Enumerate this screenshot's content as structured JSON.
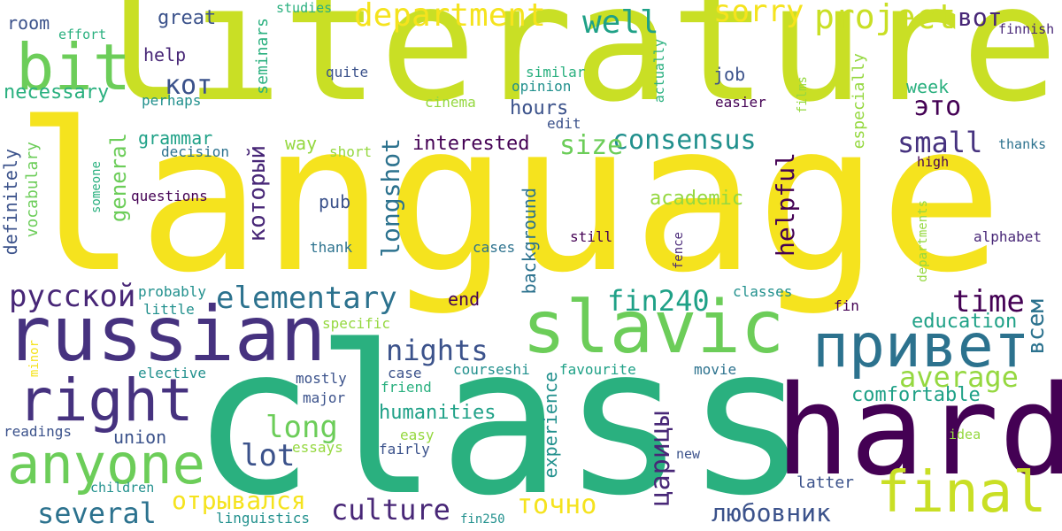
{
  "background": "#ffffff",
  "palette": {
    "yellow": "#f5e31e",
    "lime": "#c9df25",
    "green": "#6ccd59",
    "lightgreen": "#95d840",
    "teal": "#1fa187",
    "mint": "#2ab07f",
    "cyan": "#21908d",
    "steel": "#2c728e",
    "blue": "#3b528b",
    "indigo": "#46327f",
    "purple": "#482777",
    "dark": "#440154"
  },
  "words": [
    {
      "text": "literature",
      "weight": 100,
      "orientation": "horizontal",
      "color": "#c9df25"
    },
    {
      "text": "language",
      "weight": 98,
      "orientation": "horizontal",
      "color": "#f5e31e"
    },
    {
      "text": "class",
      "weight": 95,
      "orientation": "horizontal",
      "color": "#2ab07f"
    },
    {
      "text": "hard",
      "weight": 60,
      "orientation": "horizontal",
      "color": "#440154"
    },
    {
      "text": "russian",
      "weight": 50,
      "orientation": "horizontal",
      "color": "#46327f"
    },
    {
      "text": "slavic",
      "weight": 48,
      "orientation": "horizontal",
      "color": "#6ccd59"
    },
    {
      "text": "привет",
      "weight": 46,
      "orientation": "horizontal",
      "color": "#2c728e"
    },
    {
      "text": "bit",
      "weight": 45,
      "orientation": "horizontal",
      "color": "#6ccd59"
    },
    {
      "text": "right",
      "weight": 42,
      "orientation": "horizontal",
      "color": "#46327f"
    },
    {
      "text": "anyone",
      "weight": 40,
      "orientation": "horizontal",
      "color": "#6ccd59"
    },
    {
      "text": "final",
      "weight": 38,
      "orientation": "horizontal",
      "color": "#c9df25"
    },
    {
      "text": "project",
      "weight": 28,
      "orientation": "horizontal",
      "color": "#c9df25"
    },
    {
      "text": "department",
      "weight": 27,
      "orientation": "horizontal",
      "color": "#f5e31e"
    },
    {
      "text": "well",
      "weight": 26,
      "orientation": "horizontal",
      "color": "#1fa187"
    },
    {
      "text": "sorry",
      "weight": 25,
      "orientation": "horizontal",
      "color": "#f5e31e"
    },
    {
      "text": "вот",
      "weight": 20,
      "orientation": "horizontal",
      "color": "#482777"
    },
    {
      "text": "кот",
      "weight": 22,
      "orientation": "horizontal",
      "color": "#3b528b"
    },
    {
      "text": "это",
      "weight": 22,
      "orientation": "horizontal",
      "color": "#440154"
    },
    {
      "text": "consensus",
      "weight": 24,
      "orientation": "horizontal",
      "color": "#21908d"
    },
    {
      "text": "size",
      "weight": 24,
      "orientation": "horizontal",
      "color": "#6ccd59"
    },
    {
      "text": "small",
      "weight": 24,
      "orientation": "horizontal",
      "color": "#46327f"
    },
    {
      "text": "elementary",
      "weight": 28,
      "orientation": "horizontal",
      "color": "#2c728e"
    },
    {
      "text": "русской",
      "weight": 27,
      "orientation": "horizontal",
      "color": "#482777"
    },
    {
      "text": "fin240",
      "weight": 26,
      "orientation": "horizontal",
      "color": "#1fa187"
    },
    {
      "text": "time",
      "weight": 26,
      "orientation": "horizontal",
      "color": "#440154"
    },
    {
      "text": "nights",
      "weight": 26,
      "orientation": "horizontal",
      "color": "#3b528b"
    },
    {
      "text": "average",
      "weight": 26,
      "orientation": "horizontal",
      "color": "#95d840"
    },
    {
      "text": "long",
      "weight": 26,
      "orientation": "horizontal",
      "color": "#6ccd59"
    },
    {
      "text": "lot",
      "weight": 26,
      "orientation": "horizontal",
      "color": "#3b528b"
    },
    {
      "text": "several",
      "weight": 26,
      "orientation": "horizontal",
      "color": "#2c728e"
    },
    {
      "text": "culture",
      "weight": 26,
      "orientation": "horizontal",
      "color": "#482777"
    },
    {
      "text": "точно",
      "weight": 24,
      "orientation": "horizontal",
      "color": "#f5e31e"
    },
    {
      "text": "любовник",
      "weight": 24,
      "orientation": "horizontal",
      "color": "#3b528b"
    },
    {
      "text": "отрывался",
      "weight": 24,
      "orientation": "horizontal",
      "color": "#f5e31e"
    },
    {
      "text": "comfortable",
      "weight": 18,
      "orientation": "horizontal",
      "color": "#1fa187"
    },
    {
      "text": "education",
      "weight": 18,
      "orientation": "horizontal",
      "color": "#1fa187"
    },
    {
      "text": "humanities",
      "weight": 18,
      "orientation": "horizontal",
      "color": "#1fa187"
    },
    {
      "text": "interested",
      "weight": 18,
      "orientation": "horizontal",
      "color": "#440154"
    },
    {
      "text": "hours",
      "weight": 18,
      "orientation": "horizontal",
      "color": "#3b528b"
    },
    {
      "text": "academic",
      "weight": 18,
      "orientation": "horizontal",
      "color": "#95d840"
    },
    {
      "text": "grammar",
      "weight": 16,
      "orientation": "horizontal",
      "color": "#1fa187"
    },
    {
      "text": "great",
      "weight": 16,
      "orientation": "horizontal",
      "color": "#3b528b"
    },
    {
      "text": "help",
      "weight": 16,
      "orientation": "horizontal",
      "color": "#482777"
    },
    {
      "text": "room",
      "weight": 16,
      "orientation": "horizontal",
      "color": "#3b528b"
    },
    {
      "text": "necessary",
      "weight": 16,
      "orientation": "horizontal",
      "color": "#2ab07f"
    },
    {
      "text": "job",
      "weight": 16,
      "orientation": "horizontal",
      "color": "#3b528b"
    },
    {
      "text": "week",
      "weight": 16,
      "orientation": "horizontal",
      "color": "#2ab07f"
    },
    {
      "text": "way",
      "weight": 16,
      "orientation": "horizontal",
      "color": "#95d840"
    },
    {
      "text": "pub",
      "weight": 16,
      "orientation": "horizontal",
      "color": "#3b528b"
    },
    {
      "text": "end",
      "weight": 16,
      "orientation": "horizontal",
      "color": "#440154"
    },
    {
      "text": "union",
      "weight": 16,
      "orientation": "horizontal",
      "color": "#3b528b"
    },
    {
      "text": "mostly",
      "weight": 14,
      "orientation": "horizontal",
      "color": "#3b528b"
    },
    {
      "text": "major",
      "weight": 14,
      "orientation": "horizontal",
      "color": "#3b528b"
    },
    {
      "text": "fairly",
      "weight": 14,
      "orientation": "horizontal",
      "color": "#3b528b"
    },
    {
      "text": "latter",
      "weight": 14,
      "orientation": "horizontal",
      "color": "#3b528b"
    },
    {
      "text": "elective",
      "weight": 14,
      "orientation": "horizontal",
      "color": "#21908d"
    },
    {
      "text": "little",
      "weight": 14,
      "orientation": "horizontal",
      "color": "#21908d"
    },
    {
      "text": "probably",
      "weight": 14,
      "orientation": "horizontal",
      "color": "#21908d"
    },
    {
      "text": "children",
      "weight": 14,
      "orientation": "horizontal",
      "color": "#21908d"
    },
    {
      "text": "readings",
      "weight": 14,
      "orientation": "horizontal",
      "color": "#3b528b"
    },
    {
      "text": "linguistics",
      "weight": 14,
      "orientation": "horizontal",
      "color": "#21908d"
    },
    {
      "text": "fin250",
      "weight": 14,
      "orientation": "horizontal",
      "color": "#21908d"
    },
    {
      "text": "alphabet",
      "weight": 14,
      "orientation": "horizontal",
      "color": "#482777"
    },
    {
      "text": "fin",
      "weight": 14,
      "orientation": "horizontal",
      "color": "#440154"
    },
    {
      "text": "classes",
      "weight": 14,
      "orientation": "horizontal",
      "color": "#21908d"
    },
    {
      "text": "movie",
      "weight": 14,
      "orientation": "horizontal",
      "color": "#2c728e"
    },
    {
      "text": "favourite",
      "weight": 14,
      "orientation": "horizontal",
      "color": "#1fa187"
    },
    {
      "text": "courseshi",
      "weight": 14,
      "orientation": "horizontal",
      "color": "#21908d"
    },
    {
      "text": "case",
      "weight": 14,
      "orientation": "horizontal",
      "color": "#3b528b"
    },
    {
      "text": "friend",
      "weight": 14,
      "orientation": "horizontal",
      "color": "#2ab07f"
    },
    {
      "text": "easy",
      "weight": 14,
      "orientation": "horizontal",
      "color": "#95d840"
    },
    {
      "text": "essays",
      "weight": 14,
      "orientation": "horizontal",
      "color": "#95d840"
    },
    {
      "text": "new",
      "weight": 14,
      "orientation": "horizontal",
      "color": "#3b528b"
    },
    {
      "text": "idea",
      "weight": 14,
      "orientation": "horizontal",
      "color": "#95d840"
    },
    {
      "text": "specific",
      "weight": 14,
      "orientation": "horizontal",
      "color": "#95d840"
    },
    {
      "text": "still",
      "weight": 14,
      "orientation": "horizontal",
      "color": "#440154"
    },
    {
      "text": "cases",
      "weight": 14,
      "orientation": "horizontal",
      "color": "#2c728e"
    },
    {
      "text": "thank",
      "weight": 14,
      "orientation": "horizontal",
      "color": "#2c728e"
    },
    {
      "text": "questions",
      "weight": 14,
      "orientation": "horizontal",
      "color": "#440154"
    },
    {
      "text": "decision",
      "weight": 14,
      "orientation": "horizontal",
      "color": "#2c728e"
    },
    {
      "text": "short",
      "weight": 14,
      "orientation": "horizontal",
      "color": "#95d840"
    },
    {
      "text": "high",
      "weight": 14,
      "orientation": "horizontal",
      "color": "#440154"
    },
    {
      "text": "thanks",
      "weight": 14,
      "orientation": "horizontal",
      "color": "#2c728e"
    },
    {
      "text": "easier",
      "weight": 14,
      "orientation": "horizontal",
      "color": "#440154"
    },
    {
      "text": "cinema",
      "weight": 14,
      "orientation": "horizontal",
      "color": "#95d840"
    },
    {
      "text": "edit",
      "weight": 14,
      "orientation": "horizontal",
      "color": "#3b528b"
    },
    {
      "text": "opinion",
      "weight": 14,
      "orientation": "horizontal",
      "color": "#21908d"
    },
    {
      "text": "similar",
      "weight": 14,
      "orientation": "horizontal",
      "color": "#2ab07f"
    },
    {
      "text": "quite",
      "weight": 14,
      "orientation": "horizontal",
      "color": "#3b528b"
    },
    {
      "text": "perhaps",
      "weight": 14,
      "orientation": "horizontal",
      "color": "#21908d"
    },
    {
      "text": "effort",
      "weight": 14,
      "orientation": "horizontal",
      "color": "#2ab07f"
    },
    {
      "text": "studies",
      "weight": 14,
      "orientation": "horizontal",
      "color": "#2ab07f"
    },
    {
      "text": "finnish",
      "weight": 14,
      "orientation": "horizontal",
      "color": "#482777"
    },
    {
      "text": "longshot",
      "weight": 24,
      "orientation": "vertical",
      "color": "#2c728e"
    },
    {
      "text": "который",
      "weight": 22,
      "orientation": "vertical",
      "color": "#482777"
    },
    {
      "text": "general",
      "weight": 20,
      "orientation": "vertical",
      "color": "#6ccd59"
    },
    {
      "text": "helpful",
      "weight": 22,
      "orientation": "vertical",
      "color": "#440154"
    },
    {
      "text": "всем",
      "weight": 20,
      "orientation": "vertical",
      "color": "#2c728e"
    },
    {
      "text": "царицы",
      "weight": 24,
      "orientation": "vertical",
      "color": "#482777"
    },
    {
      "text": "definitely",
      "weight": 16,
      "orientation": "vertical",
      "color": "#3b528b"
    },
    {
      "text": "vocabulary",
      "weight": 16,
      "orientation": "vertical",
      "color": "#6ccd59"
    },
    {
      "text": "seminars",
      "weight": 16,
      "orientation": "vertical",
      "color": "#2ab07f"
    },
    {
      "text": "background",
      "weight": 16,
      "orientation": "vertical",
      "color": "#2c728e"
    },
    {
      "text": "experience",
      "weight": 16,
      "orientation": "vertical",
      "color": "#21908d"
    },
    {
      "text": "especially",
      "weight": 16,
      "orientation": "vertical",
      "color": "#95d840"
    },
    {
      "text": "someone",
      "weight": 14,
      "orientation": "vertical",
      "color": "#2ab07f"
    },
    {
      "text": "minor",
      "weight": 14,
      "orientation": "vertical",
      "color": "#f5e31e"
    },
    {
      "text": "fence",
      "weight": 14,
      "orientation": "vertical",
      "color": "#482777"
    },
    {
      "text": "departments",
      "weight": 14,
      "orientation": "vertical",
      "color": "#95d840"
    },
    {
      "text": "films",
      "weight": 14,
      "orientation": "vertical",
      "color": "#95d840"
    },
    {
      "text": "actually",
      "weight": 14,
      "orientation": "vertical",
      "color": "#2ab07f"
    }
  ]
}
